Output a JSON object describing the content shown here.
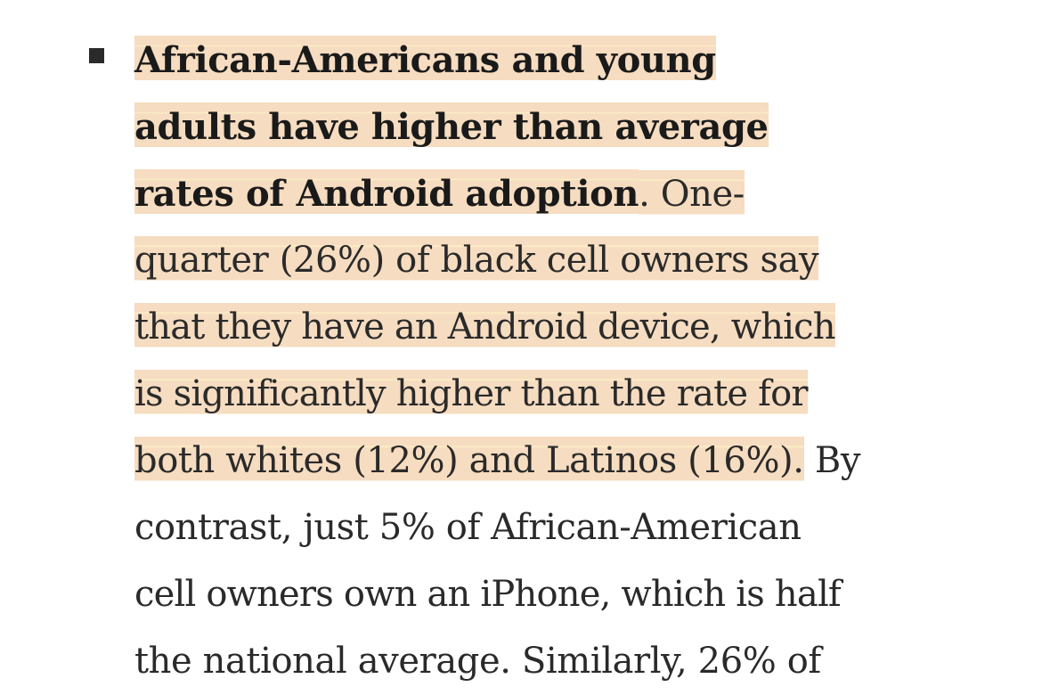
{
  "bullet_item": {
    "lines": [
      {
        "highlighted_bold": "African-Americans and young",
        "highlighted_normal": "",
        "plain": ""
      },
      {
        "highlighted_bold": "adults have higher than average",
        "highlighted_normal": "",
        "plain": ""
      },
      {
        "highlighted_bold": "rates of Android adoption",
        "highlighted_normal": ". One-",
        "plain": ""
      },
      {
        "highlighted_bold": "",
        "highlighted_normal": "quarter (26%) of black cell owners say",
        "plain": ""
      },
      {
        "highlighted_bold": "",
        "highlighted_normal": "that they have an Android device, which",
        "plain": ""
      },
      {
        "highlighted_bold": "",
        "highlighted_normal": "is significantly higher than the rate for",
        "plain": ""
      },
      {
        "highlighted_bold": "",
        "highlighted_normal": "both whites (12%) and Latinos (16%).",
        "plain": " By"
      },
      {
        "highlighted_bold": "",
        "highlighted_normal": "",
        "plain": "contrast, just 5% of African-American"
      },
      {
        "highlighted_bold": "",
        "highlighted_normal": "",
        "plain": "cell owners own an iPhone, which is half"
      },
      {
        "highlighted_bold": "",
        "highlighted_normal": "",
        "plain": "the national average. Similarly, 26% of"
      }
    ]
  },
  "colors": {
    "highlight": "#f6dcc0",
    "highlight_band": "#fbe8c4",
    "text": "#2a2a2a",
    "bullet": "#2a2a2a"
  }
}
